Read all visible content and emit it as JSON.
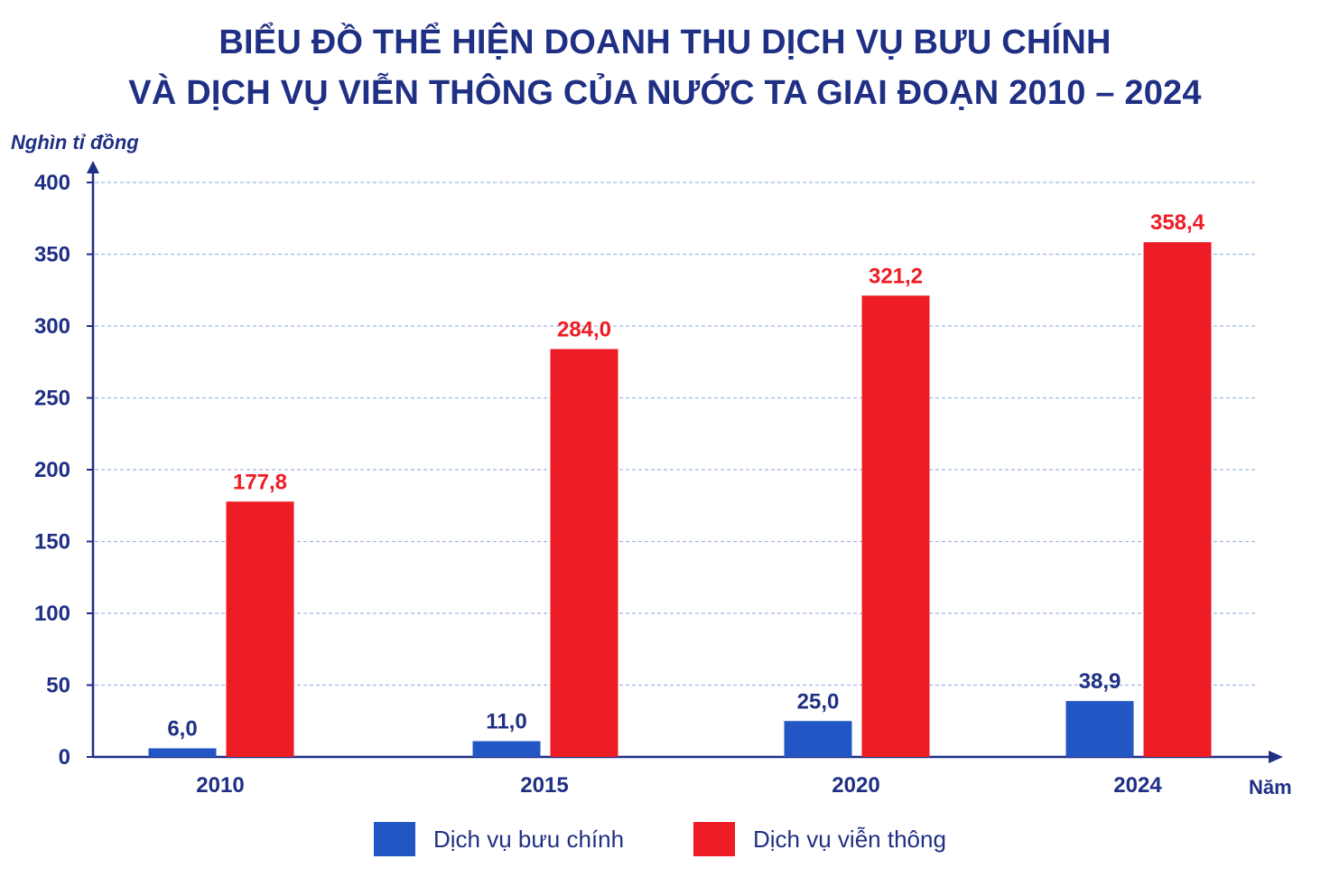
{
  "title_line1": "BIỂU ĐỒ THỂ HIỆN DOANH THU DỊCH VỤ BƯU CHÍNH",
  "title_line2": "VÀ DỊCH VỤ VIỄN THÔNG CỦA NƯỚC TA GIAI ĐOẠN 2010 – 2024",
  "colors": {
    "title": "#1f2f84",
    "postal": "#2156c4",
    "telecom": "#ee1c24",
    "grid": "#9fb7e6"
  },
  "chart_data": {
    "type": "bar",
    "title": "BIỂU ĐỒ THỂ HIỆN DOANH THU DỊCH VỤ BƯU CHÍNH VÀ DỊCH VỤ VIỄN THÔNG CỦA NƯỚC TA GIAI ĐOẠN 2010 – 2024",
    "xlabel": "Năm",
    "ylabel": "Nghìn tỉ đồng",
    "ylim": [
      0,
      400
    ],
    "yticks": [
      0,
      50,
      100,
      150,
      200,
      250,
      300,
      350,
      400
    ],
    "grid": true,
    "legend_position": "bottom",
    "categories": [
      "2010",
      "2015",
      "2020",
      "2024"
    ],
    "series": [
      {
        "name": "Dịch vụ bưu chính",
        "values": [
          6.0,
          11.0,
          25.0,
          38.9
        ],
        "labels": [
          "6,0",
          "11,0",
          "25,0",
          "38,9"
        ]
      },
      {
        "name": "Dịch vụ viễn thông",
        "values": [
          177.8,
          284.0,
          321.2,
          358.4
        ],
        "labels": [
          "177,8",
          "284,0",
          "321,2",
          "358,4"
        ]
      }
    ]
  }
}
